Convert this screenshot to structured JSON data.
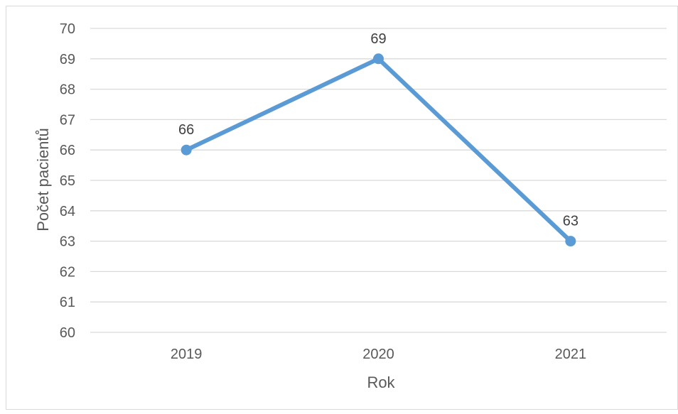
{
  "chart_data": {
    "type": "line",
    "categories": [
      "2019",
      "2020",
      "2021"
    ],
    "series": [
      {
        "values": [
          66,
          69,
          63
        ]
      }
    ],
    "xlabel": "Rok",
    "ylabel": "Počet pacientů",
    "ylim": [
      60,
      70
    ],
    "yticks": [
      "60",
      "61",
      "62",
      "63",
      "64",
      "65",
      "66",
      "67",
      "68",
      "69",
      "70"
    ],
    "data_labels": [
      "66",
      "69",
      "63"
    ],
    "grid": true,
    "legend": "none",
    "colors": {
      "line": "#5b9bd5",
      "grid": "#d9d9d9",
      "text": "#595959",
      "label": "#404040",
      "border": "#d9d9d9"
    }
  }
}
